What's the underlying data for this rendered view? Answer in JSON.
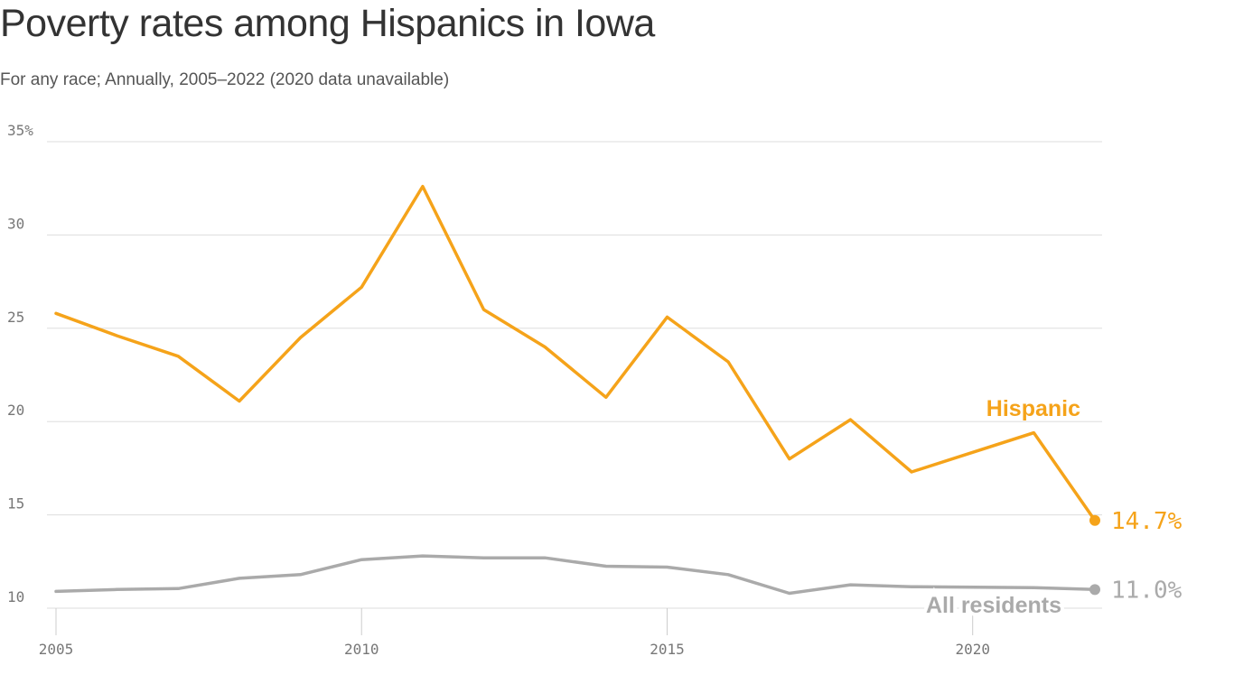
{
  "title": "Poverty rates among Hispanics in Iowa",
  "subtitle": "For any race; Annually, 2005–2022 (2020 data unavailable)",
  "colors": {
    "hispanic": "#f5a31a",
    "all": "#aaaaaa"
  },
  "chart_data": {
    "type": "line",
    "title": "Poverty rates among Hispanics in Iowa",
    "subtitle": "For any race; Annually, 2005–2022 (2020 data unavailable)",
    "ylim": [
      10,
      35
    ],
    "yticks": [
      10,
      15,
      20,
      25,
      30,
      35
    ],
    "ytick_labels": [
      "10",
      "15",
      "20",
      "25",
      "30",
      "35%"
    ],
    "xlim": [
      2005,
      2022
    ],
    "xticks": [
      2005,
      2010,
      2015,
      2020
    ],
    "xtick_labels": [
      "2005",
      "2010",
      "2015",
      "2020"
    ],
    "grid": true,
    "series": [
      {
        "name": "Hispanic",
        "color": "#f5a31a",
        "x": [
          2005,
          2006,
          2007,
          2008,
          2009,
          2010,
          2011,
          2012,
          2013,
          2014,
          2015,
          2016,
          2017,
          2018,
          2019,
          2021,
          2022
        ],
        "values": [
          25.8,
          24.6,
          23.5,
          21.1,
          24.5,
          27.2,
          32.6,
          26.0,
          24.0,
          21.3,
          25.6,
          23.2,
          18.0,
          20.1,
          17.3,
          19.4,
          14.7
        ],
        "end_label": "14.7%"
      },
      {
        "name": "All residents",
        "color": "#aaaaaa",
        "x": [
          2005,
          2006,
          2007,
          2008,
          2009,
          2010,
          2011,
          2012,
          2013,
          2014,
          2015,
          2016,
          2017,
          2018,
          2019,
          2021,
          2022
        ],
        "values": [
          10.9,
          11.0,
          11.05,
          11.6,
          11.8,
          12.6,
          12.8,
          12.7,
          12.7,
          12.25,
          12.2,
          11.8,
          10.8,
          11.25,
          11.15,
          11.1,
          11.0
        ],
        "end_label": "11.0%"
      }
    ]
  }
}
